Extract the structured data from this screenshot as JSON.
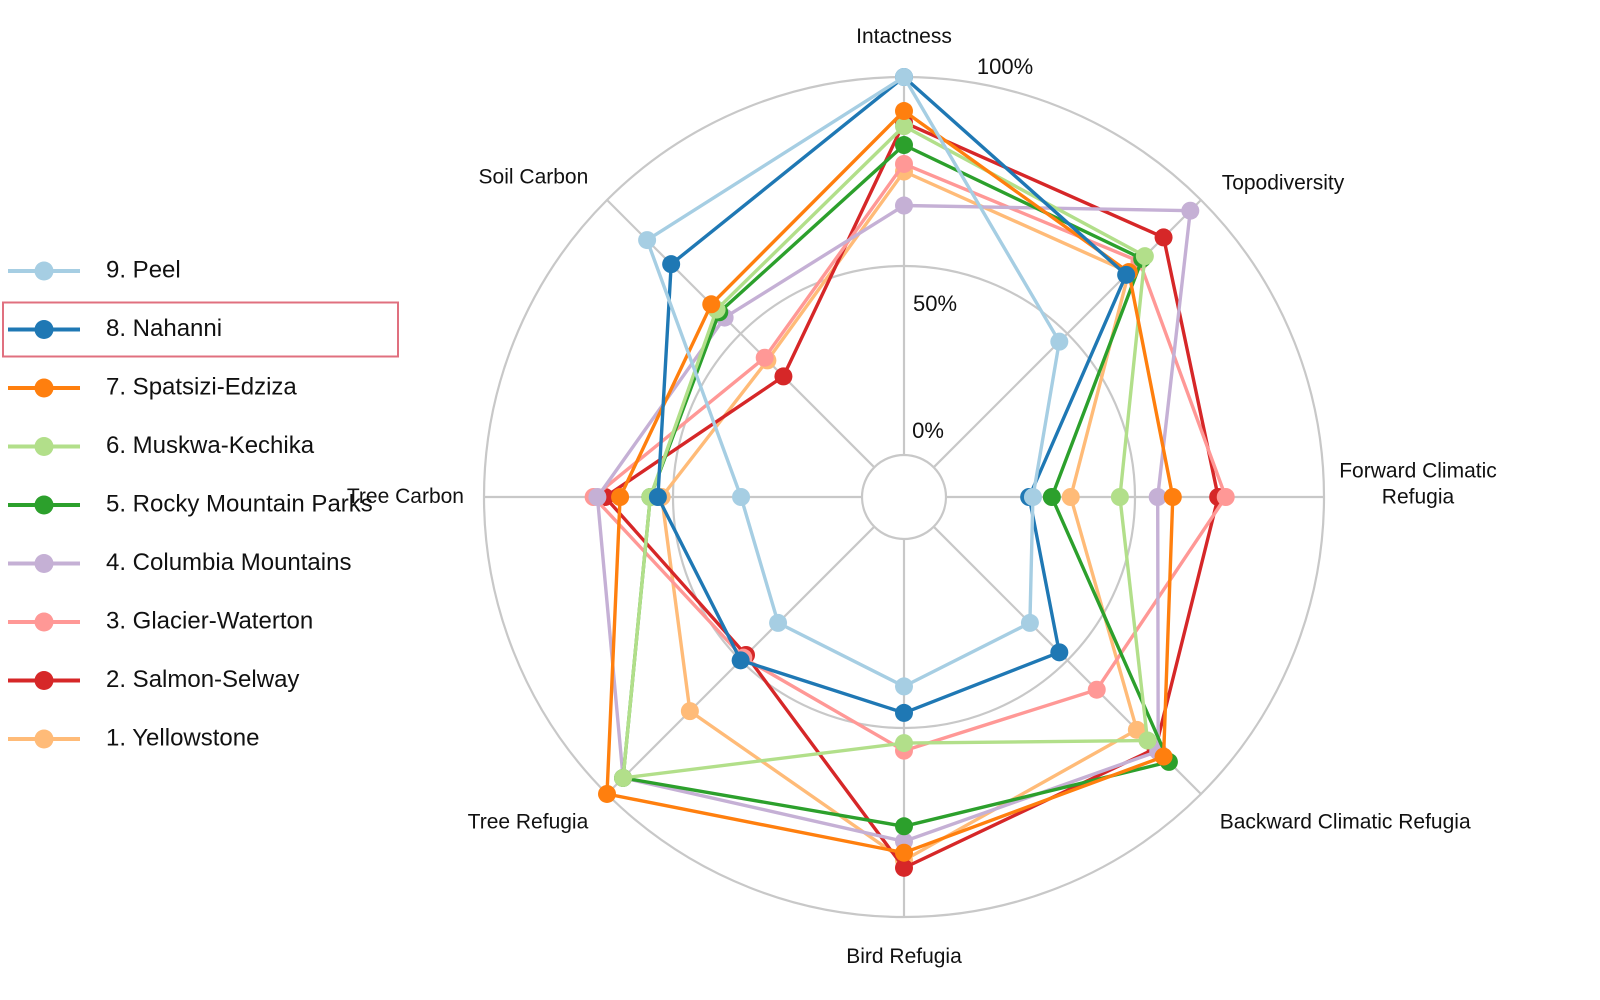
{
  "chart_data": {
    "type": "radar",
    "axes": [
      "Intactness",
      "Topodiversity",
      "Forward Climatic Refugia",
      "Backward Climatic Refugia",
      "Bird Refugia",
      "Tree Refugia",
      "Tree Carbon",
      "Soil Carbon"
    ],
    "axis_label_lines": [
      [
        "Intactness"
      ],
      [
        "Topodiversity"
      ],
      [
        "Forward Climatic",
        "Refugia"
      ],
      [
        "Backward Climatic Refugia"
      ],
      [
        "Bird Refugia"
      ],
      [
        "Tree Refugia"
      ],
      [
        "Tree Carbon"
      ],
      [
        "Soil Carbon"
      ]
    ],
    "ticks": [
      "0%",
      "50%",
      "100%"
    ],
    "range": [
      0,
      100
    ],
    "grid": true,
    "legend_position": "left",
    "highlighted_series": "8. Nahanni",
    "highlight_color": "#e0707f",
    "series": [
      {
        "name": "9. Peel",
        "color": "#a6cee3",
        "values": [
          100,
          47,
          23,
          36,
          39,
          36,
          32,
          85
        ]
      },
      {
        "name": "8. Nahanni",
        "color": "#1f78b4",
        "values": [
          100,
          72,
          22,
          47,
          46,
          50,
          54,
          76
        ]
      },
      {
        "name": "7. Spatsizi-Edziza",
        "color": "#ff7f0e",
        "values": [
          91,
          73,
          60,
          86,
          83,
          100,
          64,
          61
        ]
      },
      {
        "name": "6. Muskwa-Kechika",
        "color": "#b2df8a",
        "values": [
          87,
          79,
          46,
          80,
          54,
          94,
          56,
          59
        ]
      },
      {
        "name": "5. Rocky Mountain Parks",
        "color": "#2ca02c",
        "values": [
          82,
          78,
          28,
          88,
          76,
          94,
          56,
          58
        ]
      },
      {
        "name": "4. Columbia Mountains",
        "color": "#c5b0d5",
        "values": [
          66,
          96,
          56,
          84,
          80,
          94,
          70,
          56
        ]
      },
      {
        "name": "3. Glacier-Waterton",
        "color": "#ff9896",
        "values": [
          77,
          77,
          74,
          61,
          56,
          49,
          71,
          41
        ]
      },
      {
        "name": "2. Salmon-Selway",
        "color": "#d62728",
        "values": [
          88,
          86,
          72,
          83,
          87,
          48,
          68,
          34
        ]
      },
      {
        "name": "1. Yellowstone",
        "color": "#ffbb78",
        "values": [
          75,
          73,
          33,
          76,
          85,
          69,
          53,
          40
        ]
      }
    ]
  }
}
